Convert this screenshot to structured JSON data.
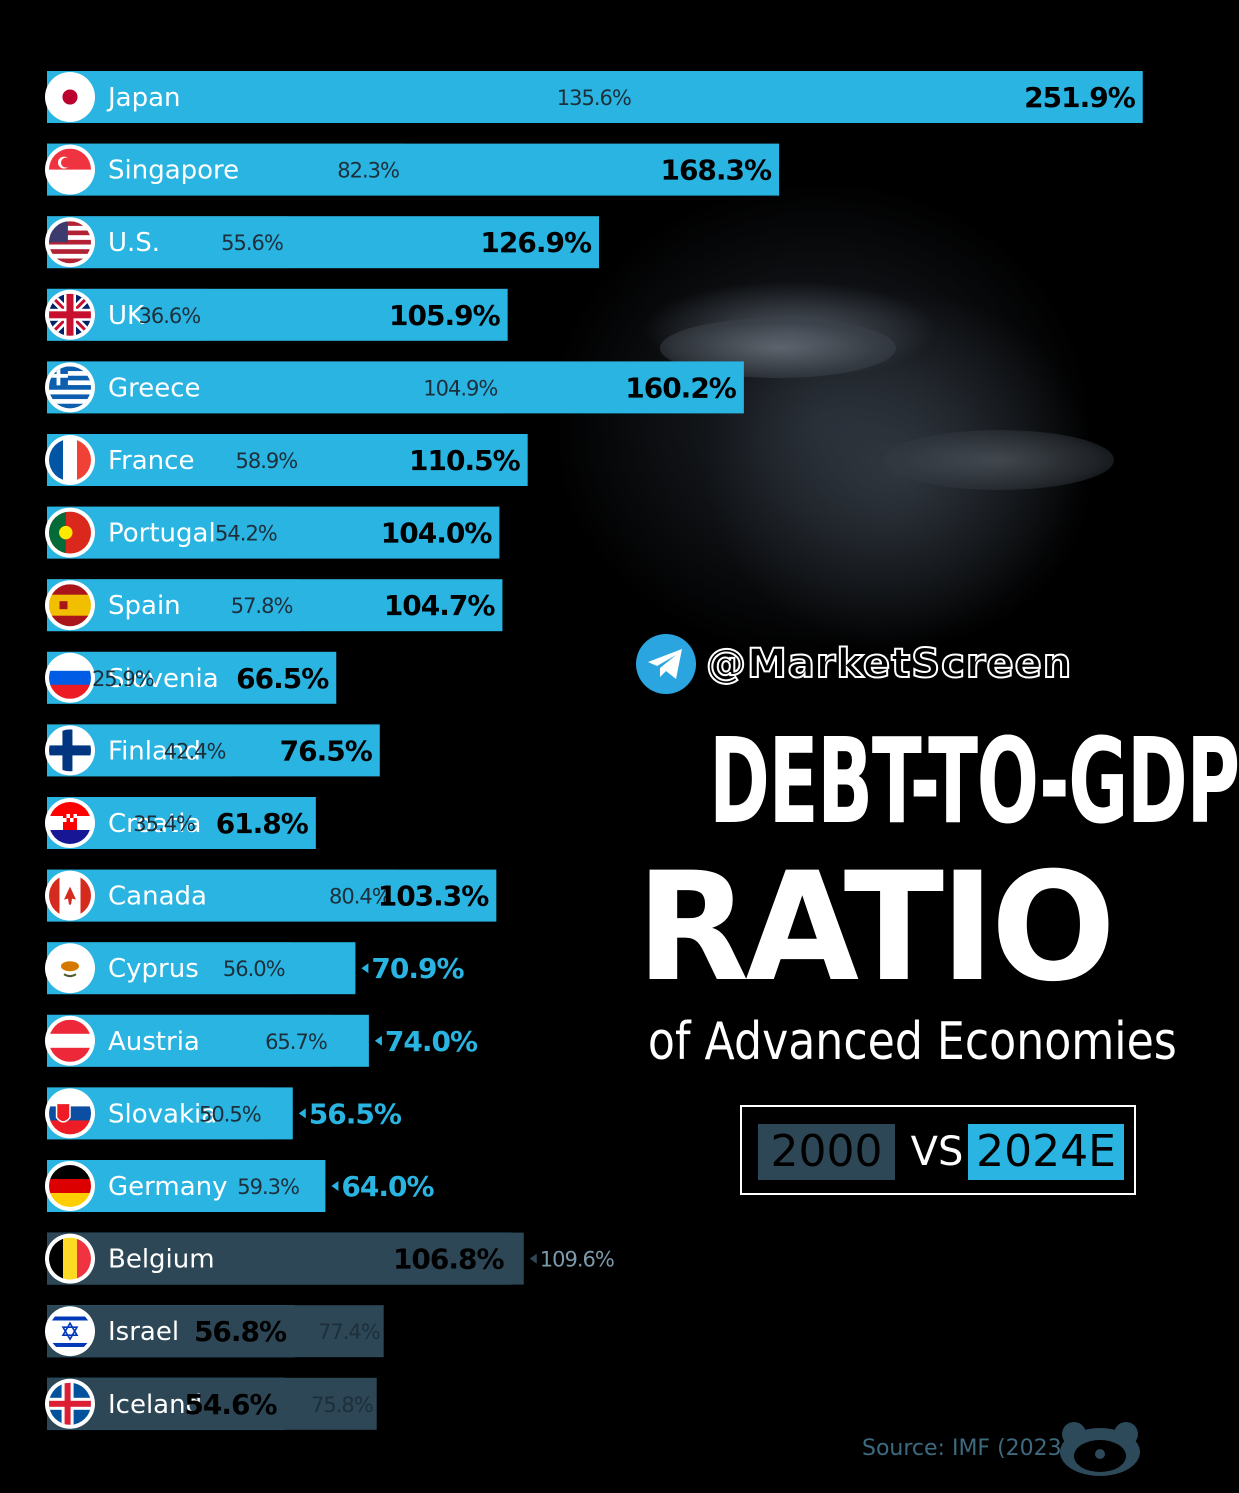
{
  "handle": "@MarketScreen",
  "title_line1": "DEBT-TO-GDP",
  "title_line2": "RATIO",
  "subtitle": "of Advanced Economies",
  "legend": {
    "label_2000": "2000",
    "vs": "VS",
    "label_2024": "2024E"
  },
  "source": "Source: IMF (2023)",
  "colors": {
    "bar_2000": "#2d4756",
    "bar_2024": "#29b4e2",
    "background": "#000000"
  },
  "chart_data": {
    "type": "bar",
    "orientation": "horizontal",
    "series": [
      {
        "name": "2000",
        "values": [
          135.6,
          82.3,
          55.6,
          36.6,
          104.9,
          58.9,
          54.2,
          57.8,
          25.9,
          42.4,
          35.4,
          80.4,
          56.0,
          65.7,
          50.5,
          59.3,
          109.6,
          77.4,
          75.8
        ]
      },
      {
        "name": "2024E",
        "values": [
          251.9,
          168.3,
          126.9,
          105.9,
          160.2,
          110.5,
          104.0,
          104.7,
          66.5,
          76.5,
          61.8,
          103.3,
          70.9,
          74.0,
          56.5,
          64.0,
          106.8,
          56.8,
          54.6
        ]
      }
    ],
    "categories": [
      "Japan",
      "Singapore",
      "U.S.",
      "UK",
      "Greece",
      "France",
      "Portugal",
      "Spain",
      "Slovenia",
      "Finland",
      "Croatia",
      "Canada",
      "Cyprus",
      "Austria",
      "Slovakia",
      "Germany",
      "Belgium",
      "Israel",
      "Iceland"
    ],
    "labels_2000": [
      "135.6%",
      "82.3%",
      "55.6%",
      "36.6%",
      "104.9%",
      "58.9%",
      "54.2%",
      "57.8%",
      "25.9%",
      "42.4%",
      "35.4%",
      "80.4%",
      "56.0%",
      "65.7%",
      "50.5%",
      "59.3%",
      "109.6%",
      "77.4%",
      "75.8%"
    ],
    "labels_2024": [
      "251.9%",
      "168.3%",
      "126.9%",
      "105.9%",
      "160.2%",
      "110.5%",
      "104.0%",
      "104.7%",
      "66.5%",
      "76.5%",
      "61.8%",
      "103.3%",
      "70.9%",
      "74.0%",
      "56.5%",
      "64.0%",
      "106.8%",
      "56.8%",
      "54.6%"
    ],
    "unit": "% of GDP"
  }
}
